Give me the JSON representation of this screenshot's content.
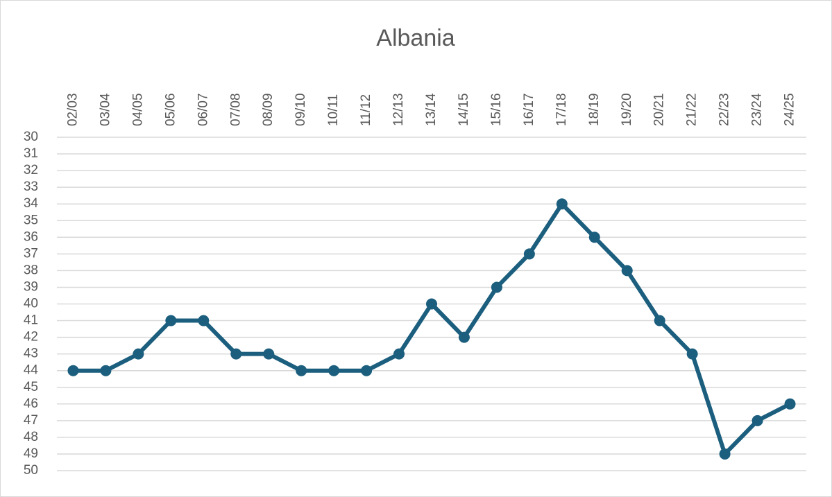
{
  "chart_data": {
    "type": "line",
    "title": "Albania",
    "categories": [
      "02/03",
      "03/04",
      "04/05",
      "05/06",
      "06/07",
      "07/08",
      "08/09",
      "09/10",
      "10/11",
      "11/12",
      "12/13",
      "13/14",
      "14/15",
      "15/16",
      "16/17",
      "17/18",
      "18/19",
      "19/20",
      "20/21",
      "21/22",
      "22/23",
      "23/24",
      "24/25"
    ],
    "series": [
      {
        "name": "Albania",
        "color": "#1b5e7e",
        "values": [
          44,
          44,
          43,
          41,
          41,
          43,
          43,
          44,
          44,
          44,
          43,
          40,
          42,
          39,
          37,
          34,
          36,
          38,
          41,
          43,
          49,
          47,
          46
        ]
      }
    ],
    "ylim": [
      30,
      50
    ],
    "yticks": [
      30,
      31,
      32,
      33,
      34,
      35,
      36,
      37,
      38,
      39,
      40,
      41,
      42,
      43,
      44,
      45,
      46,
      47,
      48,
      49,
      50
    ],
    "y_reversed": true,
    "grid": true,
    "x_axis_position": "top"
  }
}
